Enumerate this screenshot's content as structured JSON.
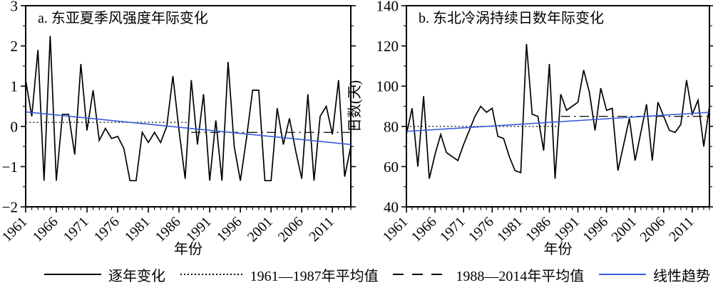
{
  "figure": {
    "legend": {
      "items": [
        {
          "label": "逐年变化",
          "style": "solid-black"
        },
        {
          "label": "1961—1987年平均值",
          "style": "dotted-black"
        },
        {
          "label": "1988—2014年平均值",
          "style": "dashed-black"
        },
        {
          "label": "线性趋势",
          "style": "solid-blue"
        }
      ]
    },
    "colors": {
      "series": "#000000",
      "trend": "#3a5bdc",
      "mean": "#1a1a1a"
    }
  },
  "chart_data": [
    {
      "id": "a",
      "type": "line",
      "title": "a. 东亚夏季风强度年际变化",
      "xlabel": "年份",
      "ylabel": "",
      "x_start": 1961,
      "x_end": 2014,
      "x_tick_labels": [
        "1961",
        "1966",
        "1971",
        "1976",
        "1981",
        "1986",
        "1991",
        "1996",
        "2001",
        "2006",
        "2011"
      ],
      "ylim": [
        -2,
        3
      ],
      "y_ticks": [
        -2,
        -1,
        0,
        1,
        2,
        3
      ],
      "y_tick_labels": [
        "−2",
        "−1",
        "0",
        "1",
        "2",
        "3"
      ],
      "y_minor_step": 0.5,
      "series": [
        {
          "name": "逐年变化",
          "type": "annual",
          "values": [
            1.15,
            0.25,
            1.9,
            -1.35,
            2.25,
            -1.35,
            0.3,
            0.3,
            -0.7,
            1.55,
            -0.1,
            0.9,
            -0.35,
            -0.05,
            -0.3,
            -0.25,
            -0.55,
            -1.35,
            -1.35,
            -0.15,
            -0.4,
            -0.15,
            -0.4,
            0.0,
            1.25,
            -0.1,
            -1.3,
            1.15,
            -0.45,
            0.8,
            -1.35,
            0.15,
            -1.35,
            1.6,
            -0.5,
            -1.35,
            -0.3,
            0.9,
            0.9,
            -1.35,
            -1.35,
            0.45,
            -0.45,
            0.2,
            -0.6,
            -1.3,
            0.8,
            -1.35,
            0.25,
            0.5,
            -0.2,
            1.15,
            -1.25,
            -0.5
          ]
        },
        {
          "name": "1961—1987年平均值",
          "type": "mean",
          "value": 0.1,
          "year_span": [
            1961,
            1987
          ]
        },
        {
          "name": "1988—2014年平均值",
          "type": "mean2",
          "value": -0.15,
          "year_span": [
            1988,
            2014
          ]
        },
        {
          "name": "线性趋势",
          "type": "trend",
          "start": 0.36,
          "end": -0.45
        }
      ]
    },
    {
      "id": "b",
      "type": "line",
      "title": "b. 东北冷涡持续日数年际变化",
      "xlabel": "年份",
      "ylabel": "日数(天)",
      "x_start": 1961,
      "x_end": 2014,
      "x_tick_labels": [
        "1961",
        "1966",
        "1971",
        "1976",
        "1981",
        "1986",
        "1991",
        "1996",
        "2001",
        "2006",
        "2011"
      ],
      "ylim": [
        40,
        140
      ],
      "y_ticks": [
        40,
        60,
        80,
        100,
        120,
        140
      ],
      "y_tick_labels": [
        "40",
        "60",
        "80",
        "100",
        "120",
        "140"
      ],
      "y_minor_step": 10,
      "series": [
        {
          "name": "逐年变化",
          "type": "annual",
          "values": [
            76,
            89,
            60,
            95,
            54,
            66,
            76,
            67,
            65,
            63,
            71,
            78,
            85,
            90,
            87,
            89,
            75,
            74,
            65,
            58,
            57,
            121,
            86,
            85,
            68,
            111,
            54,
            96,
            88,
            90,
            92,
            108,
            97,
            78,
            99,
            88,
            89,
            58,
            71,
            84,
            63,
            77,
            91,
            63,
            92,
            85,
            78,
            77,
            81,
            103,
            86,
            93,
            70,
            90
          ]
        },
        {
          "name": "1961—1987年平均值",
          "type": "mean",
          "value": 80,
          "year_span": [
            1961,
            1987
          ]
        },
        {
          "name": "1988—2014年平均值",
          "type": "mean2",
          "value": 85,
          "year_span": [
            1988,
            2014
          ]
        },
        {
          "name": "线性趋势",
          "type": "trend",
          "start": 77.5,
          "end": 87
        }
      ]
    }
  ]
}
